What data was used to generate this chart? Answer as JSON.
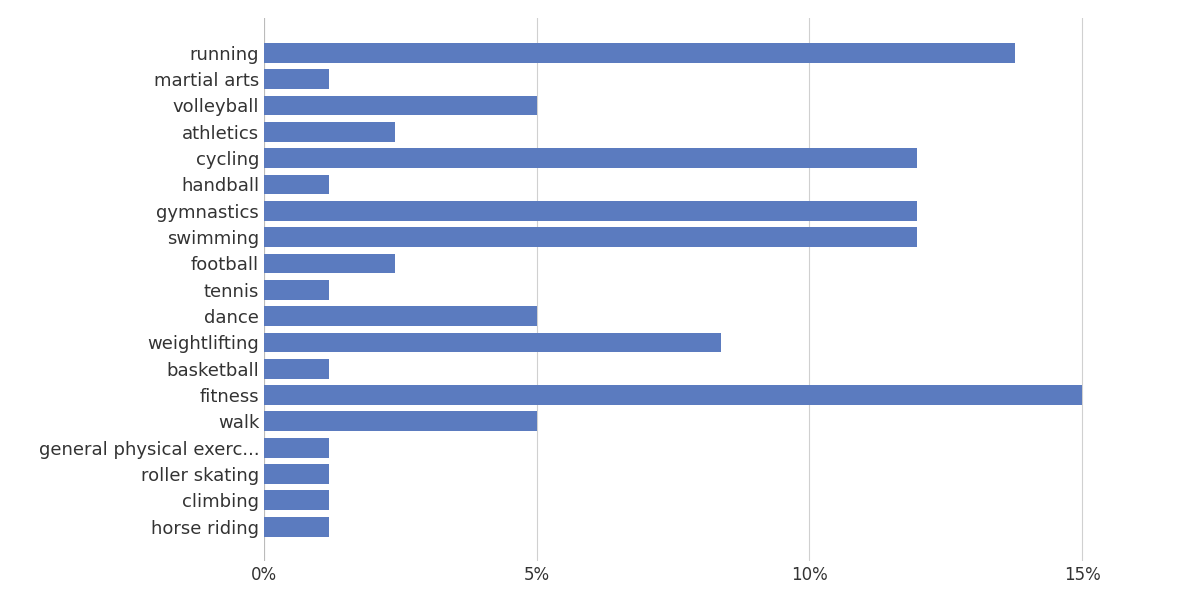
{
  "categories": [
    "running",
    "martial arts",
    "volleyball",
    "athletics",
    "cycling",
    "handball",
    "gymnastics",
    "swimming",
    "football",
    "tennis",
    "dance",
    "weightlifting",
    "basketball",
    "fitness",
    "walk",
    "general physical exerc...",
    "roller skating",
    "climbing",
    "horse riding"
  ],
  "values": [
    13.77,
    1.2,
    5.0,
    2.4,
    11.98,
    1.2,
    11.98,
    11.98,
    2.4,
    1.2,
    5.0,
    8.38,
    1.2,
    15.0,
    5.0,
    1.2,
    1.2,
    1.2,
    1.2
  ],
  "bar_color": "#5b7bbf",
  "xlim": [
    0,
    16.5
  ],
  "xtick_values": [
    0,
    5,
    10,
    15
  ],
  "xtick_labels": [
    "0%",
    "5%",
    "10%",
    "15%"
  ],
  "background_color": "#ffffff",
  "grid_color": "#d0d0d0",
  "label_fontsize": 13,
  "tick_fontsize": 12
}
